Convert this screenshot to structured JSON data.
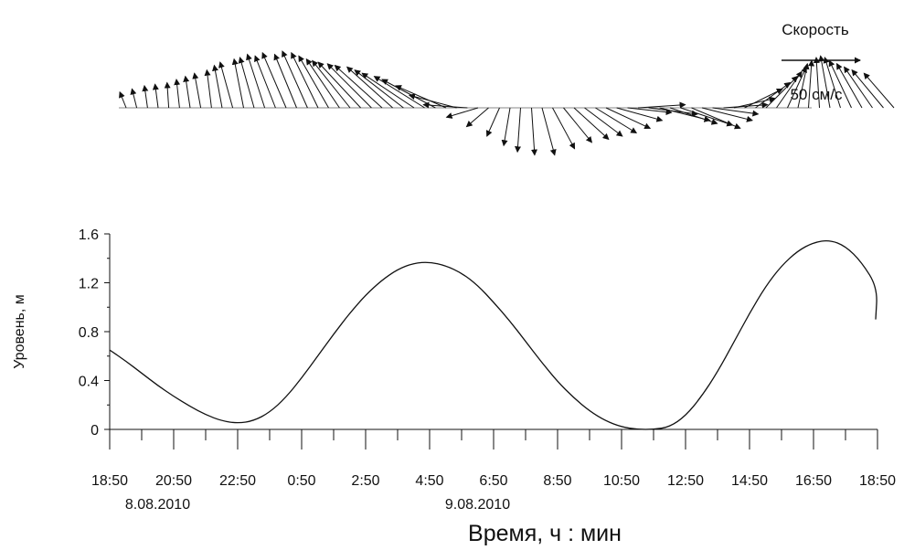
{
  "chart_data": [
    {
      "type": "quiver",
      "legend": {
        "label": "Скорость",
        "scale_label": "50 см/с",
        "scale_value_cm_s": 50,
        "placement": "top-right"
      },
      "hours": [
        0.0,
        0.33,
        0.67,
        1.0,
        1.33,
        1.67,
        2.0,
        2.33,
        2.67,
        3.0,
        3.33,
        3.67,
        4.0,
        4.33,
        4.67,
        5.0,
        5.33,
        5.67,
        6.0,
        6.33,
        6.67,
        7.0,
        7.33,
        7.67,
        8.0,
        8.33,
        8.67,
        9.0,
        9.33,
        9.67,
        10.0,
        10.33,
        10.67,
        11.0,
        11.33,
        11.67,
        12.0,
        12.33,
        12.67,
        13.0,
        13.33,
        13.67,
        14.0,
        14.33,
        14.67,
        15.0,
        15.33,
        15.67,
        16.0,
        16.33,
        16.67,
        17.0,
        17.33,
        17.67,
        18.0,
        18.33,
        18.67,
        19.0,
        19.33,
        19.67,
        20.0,
        20.33,
        20.67,
        21.0,
        21.33,
        21.67,
        22.0,
        22.33,
        22.67,
        23.0,
        23.33,
        23.67,
        24.0
      ],
      "u_cm_s": [
        -4,
        -3,
        -2,
        -2,
        -1,
        -2,
        -3,
        -4,
        -3,
        -5,
        -8,
        -6,
        -9,
        -11,
        -13,
        -15,
        -14,
        -16,
        -17,
        -19,
        -21,
        -24,
        -27,
        -28,
        -30,
        -29,
        -31,
        -33,
        -32,
        -34,
        -32,
        -30,
        -28,
        -20,
        -14,
        -8,
        -4,
        -2,
        2,
        8,
        14,
        18,
        22,
        24,
        26,
        28,
        29,
        28,
        30,
        31,
        32,
        30,
        33,
        31,
        32,
        29,
        28,
        26,
        24,
        22,
        20,
        16,
        12,
        6,
        2,
        -2,
        -6,
        -10,
        -14,
        -16,
        -18,
        -20,
        -19
      ],
      "v_cm_s": [
        10,
        12,
        14,
        15,
        16,
        18,
        20,
        22,
        24,
        27,
        29,
        31,
        32,
        34,
        33,
        35,
        34,
        36,
        35,
        33,
        31,
        30,
        29,
        28,
        27,
        26,
        24,
        22,
        20,
        18,
        14,
        8,
        2,
        -6,
        -12,
        -18,
        -24,
        -28,
        -30,
        -30,
        -26,
        -22,
        -20,
        -18,
        -16,
        -13,
        -8,
        -3,
        2,
        -4,
        -8,
        -10,
        -11,
        -13,
        -8,
        -4,
        2,
        6,
        12,
        16,
        20,
        23,
        26,
        28,
        30,
        32,
        33,
        32,
        30,
        28,
        26,
        24,
        22
      ]
    },
    {
      "type": "line",
      "title": "",
      "xlabel": "Время, ч : мин",
      "ylabel": "Уровень, м",
      "ylim": [
        0,
        1.6
      ],
      "yticks": [
        0,
        0.4,
        0.8,
        1.2,
        1.6
      ],
      "ytick_labels": [
        "0",
        "0.4",
        "0.8",
        "1.2",
        "1.6"
      ],
      "xlim_hours": [
        0,
        24
      ],
      "xticks_hours": [
        0,
        2,
        4,
        6,
        8,
        10,
        12,
        14,
        16,
        18,
        20,
        22,
        24
      ],
      "xtick_labels": [
        "18:50",
        "20:50",
        "22:50",
        "0:50",
        "2:50",
        "4:50",
        "6:50",
        "8:50",
        "10:50",
        "12:50",
        "14:50",
        "16:50",
        "18:50"
      ],
      "date_labels": [
        {
          "hour": 1.5,
          "label": "8.08.2010"
        },
        {
          "hour": 11.5,
          "label": "9.08.2010"
        }
      ],
      "grid": false,
      "series": [
        {
          "x_hours": [
            0,
            0.5,
            1,
            1.5,
            2,
            2.5,
            3,
            3.5,
            4,
            4.5,
            5,
            5.5,
            6,
            6.5,
            7,
            7.5,
            8,
            8.5,
            9,
            9.5,
            10,
            10.5,
            11,
            11.5,
            12,
            12.5,
            13,
            13.5,
            14,
            14.5,
            15,
            15.5,
            16,
            16.5,
            17,
            17.5,
            18,
            18.5,
            19,
            19.5,
            20,
            20.5,
            21,
            21.5,
            22,
            22.5,
            23,
            23.5,
            24
          ],
          "y": [
            0.65,
            0.56,
            0.46,
            0.36,
            0.27,
            0.19,
            0.12,
            0.07,
            0.05,
            0.07,
            0.14,
            0.26,
            0.42,
            0.6,
            0.78,
            0.95,
            1.1,
            1.22,
            1.31,
            1.36,
            1.37,
            1.34,
            1.28,
            1.18,
            1.04,
            0.89,
            0.72,
            0.55,
            0.39,
            0.26,
            0.15,
            0.07,
            0.02,
            0.0,
            0.0,
            0.02,
            0.11,
            0.27,
            0.47,
            0.71,
            0.95,
            1.17,
            1.34,
            1.46,
            1.53,
            1.55,
            1.5,
            1.37,
            1.16
          ]
        }
      ],
      "extra_tail": {
        "x_hours": [
          24,
          24.5
        ],
        "y": [
          1.16,
          0.9
        ]
      }
    }
  ]
}
